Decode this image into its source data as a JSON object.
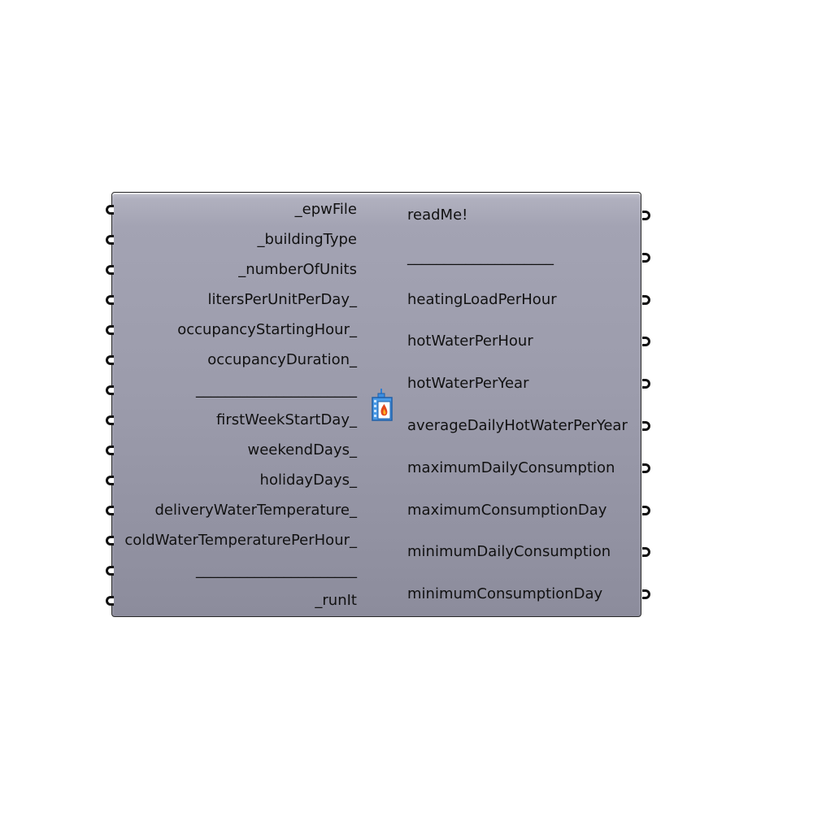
{
  "component": {
    "inputs": [
      "_epwFile",
      "_buildingType",
      "_numberOfUnits",
      "litersPerUnitPerDay_",
      "occupancyStartingHour_",
      "occupancyDuration_",
      "______________________",
      "firstWeekStartDay_",
      "weekendDays_",
      "holidayDays_",
      "deliveryWaterTemperature_",
      "coldWaterTemperaturePerHour_",
      "______________________",
      "_runIt"
    ],
    "outputs": [
      "readMe!",
      "____________________",
      "heatingLoadPerHour",
      "hotWaterPerHour",
      "hotWaterPerYear",
      "averageDailyHotWaterPerYear",
      "maximumDailyConsumption",
      "maximumConsumptionDay",
      "minimumDailyConsumption",
      "minimumConsumptionDay"
    ],
    "icon": "hot-water-building-icon",
    "colors": {
      "body_top": "#b3b3c1",
      "body_bottom": "#8c8c9c",
      "border": "#2a2a2a",
      "icon_blue": "#2f7fd4",
      "icon_flame": "#e3481c"
    }
  }
}
